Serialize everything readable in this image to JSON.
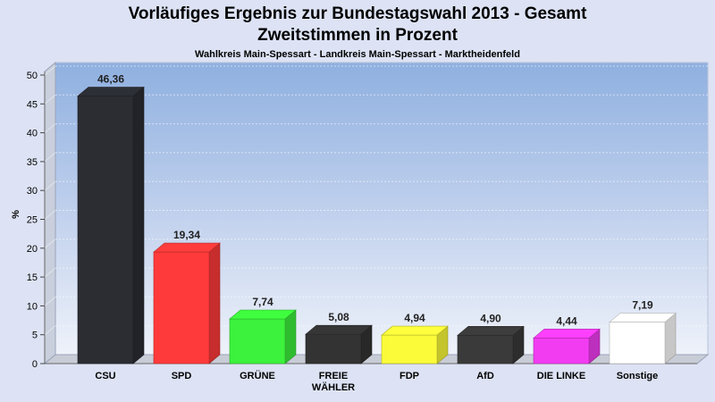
{
  "header": {
    "title": "Vorläufiges Ergebnis zur Bundestagswahl 2013 - Gesamt",
    "subtitle": "Zweitstimmen in Prozent",
    "location": "Wahlkreis Main-Spessart - Landkreis Main-Spessart - Marktheidenfeld"
  },
  "chart_data": {
    "type": "bar",
    "title": "Vorläufiges Ergebnis zur Bundestagswahl 2013 - Gesamt",
    "subtitle": "Zweitstimmen in Prozent",
    "xlabel": "",
    "ylabel": "%",
    "ylim": [
      0,
      50
    ],
    "yticks": [
      0,
      5,
      10,
      15,
      20,
      25,
      30,
      35,
      40,
      45,
      50
    ],
    "grid": true,
    "categories": [
      "CSU",
      "SPD",
      "GRÜNE",
      "FREIE WÄHLER",
      "FDP",
      "AfD",
      "DIE LINKE",
      "Sonstige"
    ],
    "category_lines": [
      [
        "CSU"
      ],
      [
        "SPD"
      ],
      [
        "GRÜNE"
      ],
      [
        "FREIE",
        "WÄHLER"
      ],
      [
        "FDP"
      ],
      [
        "AfD"
      ],
      [
        "DIE LINKE"
      ],
      [
        "Sonstige"
      ]
    ],
    "values": [
      46.36,
      19.34,
      7.74,
      5.08,
      4.94,
      4.9,
      4.44,
      7.19
    ],
    "value_labels": [
      "46,36",
      "19,34",
      "7,74",
      "5,08",
      "4,94",
      "4,90",
      "4,44",
      "7,19"
    ],
    "colors": [
      "#2b2d33",
      "#ff3a3a",
      "#3cf23c",
      "#333333",
      "#fbfb3a",
      "#3a3a3a",
      "#f23cf2",
      "#ffffff"
    ]
  }
}
